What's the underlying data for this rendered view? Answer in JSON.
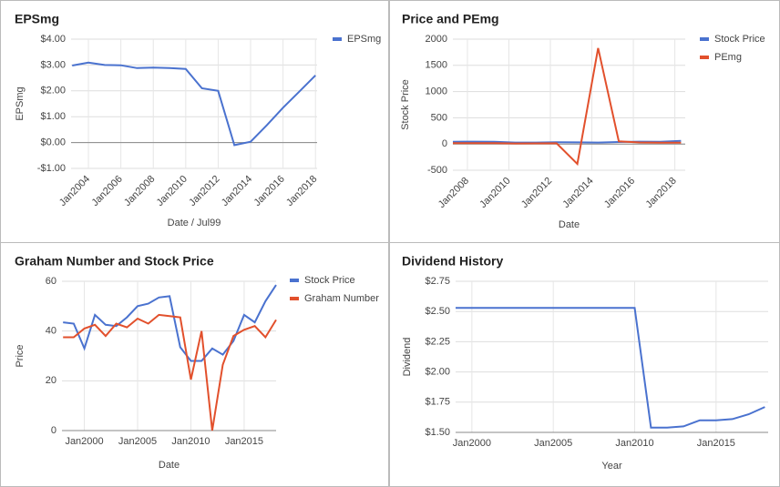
{
  "chart_data": [
    {
      "type": "line",
      "title": "EPSmg",
      "xlabel": "Date / Jul99",
      "ylabel": "EPSmg",
      "grid": true,
      "legend": "right",
      "x": [
        2003,
        2004,
        2005,
        2006,
        2007,
        2008,
        2009,
        2010,
        2011,
        2012,
        2013,
        2014,
        2015,
        2016,
        2017,
        2018
      ],
      "series": [
        {
          "name": "EPSmg",
          "color": "#4a72cf",
          "values": [
            2.98,
            3.09,
            3.0,
            2.99,
            2.88,
            2.9,
            2.88,
            2.85,
            2.1,
            2.0,
            -0.1,
            0.03,
            0.67,
            1.35,
            1.97,
            2.6
          ]
        }
      ],
      "xlim": [
        2002.93,
        2018.1
      ],
      "xticks": [
        {
          "value": 2004,
          "label": "Jan2004"
        },
        {
          "value": 2006,
          "label": "Jan2006"
        },
        {
          "value": 2008,
          "label": "Jan2008"
        },
        {
          "value": 2010,
          "label": "Jan2010"
        },
        {
          "value": 2012,
          "label": "Jan2012"
        },
        {
          "value": 2014,
          "label": "Jan2014"
        },
        {
          "value": 2016,
          "label": "Jan2016"
        },
        {
          "value": 2018,
          "label": "Jan2018"
        }
      ],
      "ylim": [
        -1,
        4
      ],
      "yticks": [
        {
          "value": 4,
          "label": "$4.00"
        },
        {
          "value": 3,
          "label": "$3.00"
        },
        {
          "value": 2,
          "label": "$2.00"
        },
        {
          "value": 1,
          "label": "$1.00"
        },
        {
          "value": 0,
          "label": "$0.00"
        },
        {
          "value": -1,
          "label": "-$1.00"
        }
      ]
    },
    {
      "type": "line",
      "title": "Price and PEmg",
      "xlabel": "Date",
      "ylabel": "Stock Price",
      "grid": true,
      "legend": "right",
      "x": [
        2007.3,
        2008.3,
        2009.3,
        2010.3,
        2011.3,
        2012.3,
        2013.3,
        2014.3,
        2015.3,
        2016.3,
        2017.3,
        2018.3
      ],
      "series": [
        {
          "name": "Stock Price",
          "color": "#4a72cf",
          "values": [
            43,
            45,
            42,
            28,
            28,
            33,
            31,
            28,
            38,
            46,
            42,
            59
          ]
        },
        {
          "name": "PEmg",
          "color": "#e2502c",
          "values": [
            15,
            15,
            15,
            10,
            12,
            14,
            -380,
            1830,
            50,
            30,
            25,
            25
          ]
        }
      ],
      "xlim": [
        2007.3,
        2018.5
      ],
      "xticks": [
        {
          "value": 2008,
          "label": "Jan2008"
        },
        {
          "value": 2010,
          "label": "Jan2010"
        },
        {
          "value": 2012,
          "label": "Jan2012"
        },
        {
          "value": 2014,
          "label": "Jan2014"
        },
        {
          "value": 2016,
          "label": "Jan2016"
        },
        {
          "value": 2018,
          "label": "Jan2018"
        }
      ],
      "ylim": [
        -500,
        2000
      ],
      "yticks": [
        2000,
        1500,
        1000,
        500,
        0,
        -500
      ]
    },
    {
      "type": "line",
      "title": "Graham Number and Stock Price",
      "xlabel": "Date",
      "ylabel": "Price",
      "grid": true,
      "legend": "right",
      "x": [
        1998,
        1999,
        2000,
        2001,
        2002,
        2003,
        2004,
        2005,
        2006,
        2007,
        2008,
        2009,
        2010,
        2011,
        2012,
        2013,
        2014,
        2015,
        2016,
        2017,
        2018
      ],
      "series": [
        {
          "name": "Stock Price",
          "color": "#4a72cf",
          "values": [
            43.5,
            43,
            33,
            46.5,
            42.5,
            42,
            45.5,
            50,
            51,
            53.5,
            54,
            33.5,
            28,
            28,
            33,
            30.5,
            36,
            46.5,
            43.5,
            52,
            58.5
          ]
        },
        {
          "name": "Graham Number",
          "color": "#e2502c",
          "values": [
            37.5,
            37.5,
            41,
            42.5,
            38,
            43,
            41.5,
            45,
            43,
            46.5,
            46,
            45.5,
            20.5,
            40,
            0,
            26.5,
            38,
            40.5,
            42,
            37.5,
            44.5
          ]
        }
      ],
      "xlim": [
        1997.9,
        2018
      ],
      "xticks": [
        {
          "value": 2000,
          "label": "Jan2000"
        },
        {
          "value": 2005,
          "label": "Jan2005"
        },
        {
          "value": 2010,
          "label": "Jan2010"
        },
        {
          "value": 2015,
          "label": "Jan2015"
        }
      ],
      "ylim": [
        0,
        60
      ],
      "yticks": [
        60,
        40,
        20,
        0
      ]
    },
    {
      "type": "line",
      "title": "Dividend History",
      "xlabel": "Year",
      "ylabel": "Dividend",
      "grid": true,
      "legend": "none",
      "x": [
        1999,
        2000,
        2001,
        2002,
        2003,
        2004,
        2005,
        2006,
        2007,
        2008,
        2009,
        2010,
        2011,
        2012,
        2013,
        2014,
        2015,
        2016,
        2017,
        2018
      ],
      "series": [
        {
          "name": "Dividend",
          "color": "#4a72cf",
          "values": [
            2.53,
            2.53,
            2.53,
            2.53,
            2.53,
            2.53,
            2.53,
            2.53,
            2.53,
            2.53,
            2.53,
            2.53,
            1.54,
            1.54,
            1.55,
            1.6,
            1.6,
            1.61,
            1.65,
            1.71
          ]
        }
      ],
      "xlim": [
        1999,
        2018.2
      ],
      "xticks": [
        {
          "value": 2000,
          "label": "Jan2000"
        },
        {
          "value": 2005,
          "label": "Jan2005"
        },
        {
          "value": 2010,
          "label": "Jan2010"
        },
        {
          "value": 2015,
          "label": "Jan2015"
        }
      ],
      "ylim": [
        1.5,
        2.75
      ],
      "yticks": [
        {
          "value": 2.75,
          "label": "$2.75"
        },
        {
          "value": 2.5,
          "label": "$2.50"
        },
        {
          "value": 2.25,
          "label": "$2.25"
        },
        {
          "value": 2,
          "label": "$2.00"
        },
        {
          "value": 1.75,
          "label": "$1.75"
        },
        {
          "value": 1.5,
          "label": "$1.50"
        }
      ]
    }
  ]
}
